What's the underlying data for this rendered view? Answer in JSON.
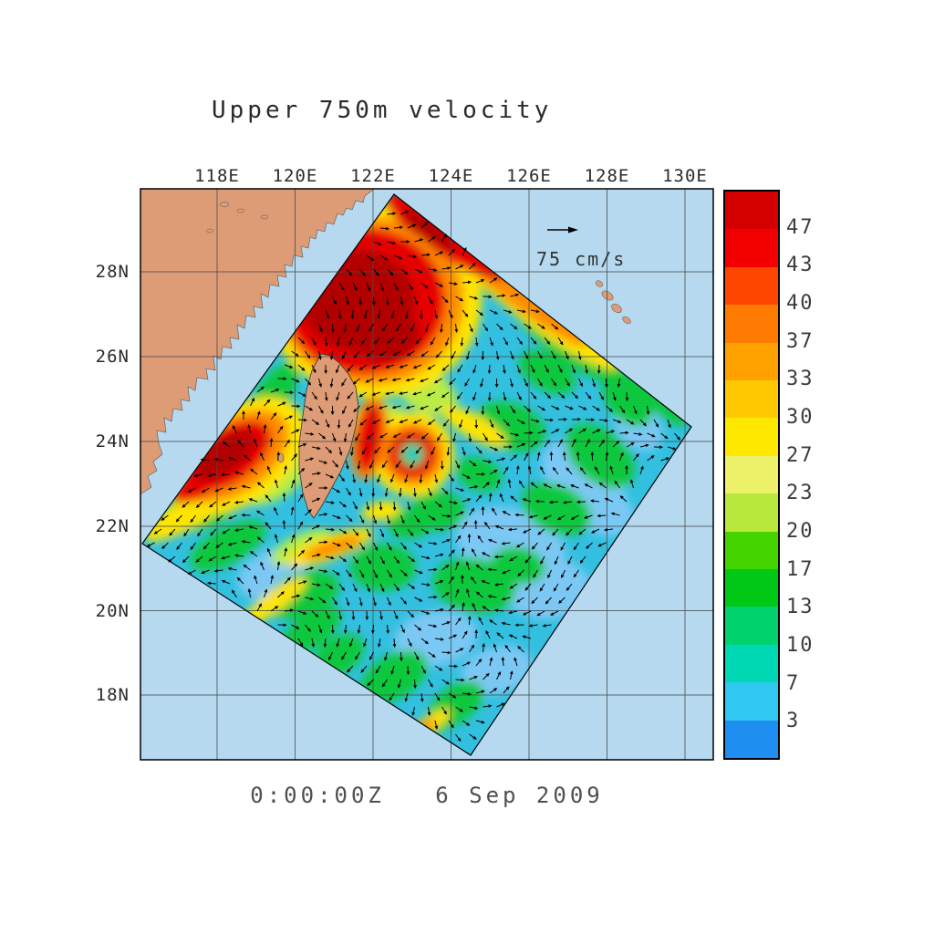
{
  "title": "Upper 750m velocity",
  "timestamp": "0:00:00Z   6 Sep 2009",
  "reference_vector": {
    "label": "75 cm/s"
  },
  "axes": {
    "lon_ticks": [
      "118E",
      "120E",
      "122E",
      "124E",
      "126E",
      "128E",
      "130E"
    ],
    "lat_ticks": [
      "28N",
      "26N",
      "24N",
      "22N",
      "20N",
      "18N"
    ]
  },
  "colorbar": {
    "tick_labels": [
      "47",
      "43",
      "40",
      "37",
      "33",
      "30",
      "27",
      "23",
      "20",
      "17",
      "13",
      "10",
      "7",
      "3"
    ],
    "colors_top_to_bottom": [
      "#d40000",
      "#f20000",
      "#ff4600",
      "#ff7a00",
      "#ffa200",
      "#ffc800",
      "#ffe800",
      "#eef26a",
      "#b8e83c",
      "#44d400",
      "#00c814",
      "#00d26e",
      "#00d8b4",
      "#30c8f0",
      "#1e8ef0"
    ]
  },
  "colors": {
    "ocean": "#b6d9f0",
    "land": "#dd9c76",
    "background": "#ffffff"
  },
  "chart_data": {
    "type": "heatmap",
    "title": "Upper 750m velocity",
    "units": "cm/s",
    "colorbar_levels": [
      3,
      7,
      10,
      13,
      17,
      20,
      23,
      27,
      30,
      33,
      37,
      40,
      43,
      47
    ],
    "lon_tick_labels": [
      "118E",
      "120E",
      "122E",
      "124E",
      "126E",
      "128E",
      "130E"
    ],
    "lat_tick_labels": [
      "28N",
      "26N",
      "24N",
      "22N",
      "20N",
      "18N"
    ],
    "reference_vector_cm_s": 75,
    "valid_time": "0:00:00Z 6 Sep 2009",
    "description": "Ocean current speed (color shading, cm/s) with direction arrows in a rotated model domain around Taiwan; strongest currents (red, >40 cm/s) in the Taiwan Strait and in the Kuroshio northeast of Taiwan; weaker cyan/blue flow (<10 cm/s) southeast of the domain."
  }
}
